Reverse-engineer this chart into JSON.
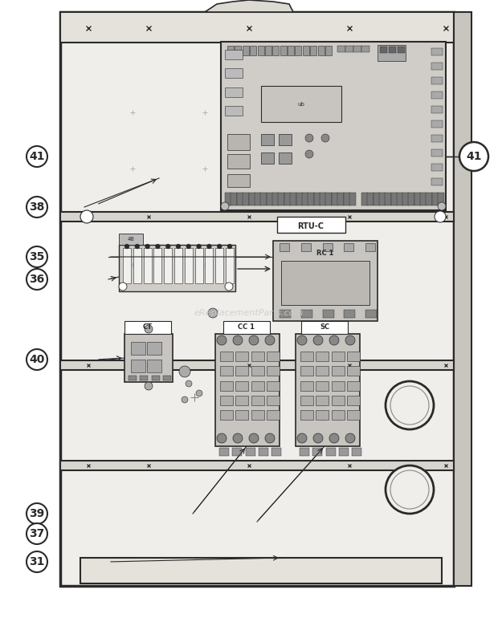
{
  "bg_color": "#f2f0ed",
  "panel_bg": "#eeece8",
  "board_bg": "#d5d2cc",
  "dark": "#2a2a2a",
  "mid_gray": "#888888",
  "light_gray": "#bbbbbb",
  "white": "#ffffff",
  "watermark": "eReplacementParts.com",
  "rtu_label": "RTU-C",
  "rc1_label": "RC 1",
  "ct_label": "CT",
  "cc_label": "CC 1",
  "sc_label": "SC",
  "figsize": [
    6.2,
    7.75
  ],
  "dpi": 100
}
